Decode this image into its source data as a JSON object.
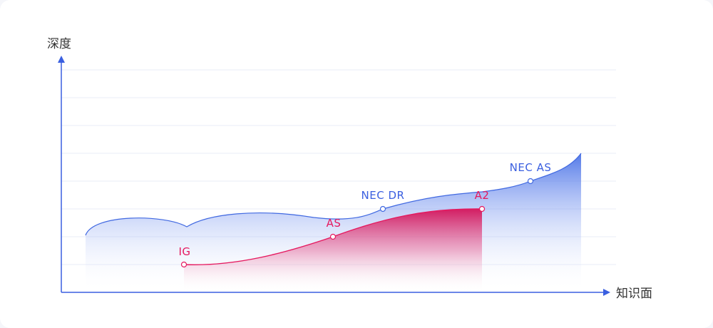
{
  "chart_data": {
    "type": "area",
    "ylabel": "深度",
    "xlabel": "知识面",
    "grid": true,
    "series": [
      {
        "color": "#4169e1",
        "points": [
          {
            "label": "NEC DR"
          },
          {
            "label": "NEC AS"
          }
        ]
      },
      {
        "color": "#e5195f",
        "points": [
          {
            "label": "IG"
          },
          {
            "label": "AS"
          },
          {
            "label": "A2"
          }
        ]
      }
    ]
  },
  "colors": {
    "axis": "#3a5fe0",
    "grid": "#e8ecf7",
    "blue": "#4169e1",
    "red": "#e5195f"
  }
}
